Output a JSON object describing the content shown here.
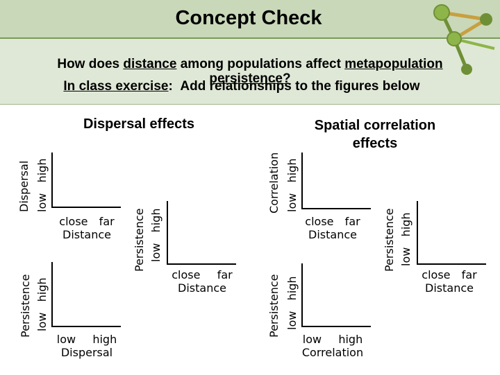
{
  "title": "Concept Check",
  "question": {
    "prefix": "How does ",
    "term1": "distance",
    "middle": " among populations affect ",
    "term2": "metapopulation",
    "line2": "persistence?"
  },
  "exercise": {
    "label": "In class exercise",
    "colon": ":",
    "text": "Add relationships to the figures below"
  },
  "sections": {
    "dispersal_heading": "Dispersal effects",
    "spatial_heading": "Spatial correlation effects"
  },
  "graphs": {
    "g1": {
      "y_title": "Dispersal",
      "y_ticks": "low   high",
      "x_ticks": "close  far",
      "x_title": "Distance"
    },
    "g2": {
      "y_title": "Persistence",
      "y_ticks": "low   high",
      "x_ticks": "low   high",
      "x_title": "Dispersal"
    },
    "g3": {
      "y_title": "Persistence",
      "y_ticks": "low   high",
      "x_ticks": "close   far",
      "x_title": "Distance"
    },
    "g4": {
      "y_title": "Correlation",
      "y_ticks": "low   high",
      "x_ticks": "close  far",
      "x_title": "Distance"
    },
    "g5": {
      "y_title": "Persistence",
      "y_ticks": "low   high",
      "x_ticks": "low   high",
      "x_title": "Correlation"
    },
    "g6": {
      "y_title": "Persistence",
      "y_ticks": "low   high",
      "x_ticks": "close  far",
      "x_title": "Distance"
    }
  },
  "colors": {
    "accent": "#7a9a5a",
    "node": "#8db54a",
    "node_dark": "#6f8f36",
    "link": "#c8a040"
  }
}
